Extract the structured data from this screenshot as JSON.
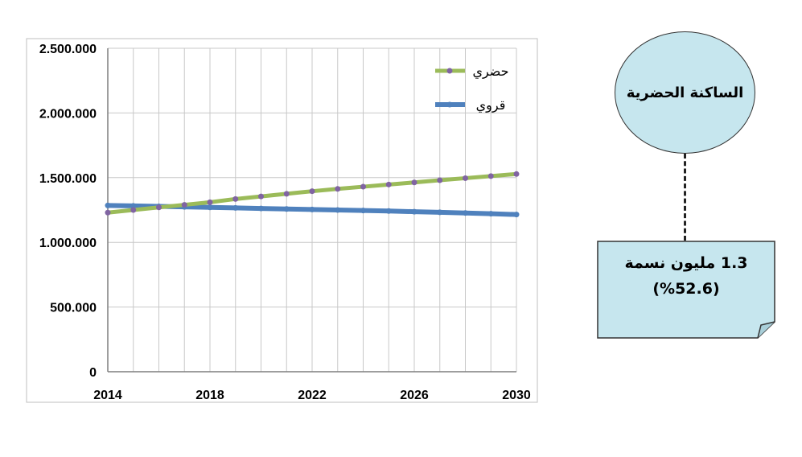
{
  "chart_data": {
    "type": "line",
    "title": "",
    "xlabel": "",
    "ylabel": "",
    "x": [
      2014,
      2015,
      2016,
      2017,
      2018,
      2019,
      2020,
      2021,
      2022,
      2023,
      2024,
      2025,
      2026,
      2027,
      2028,
      2029,
      2030
    ],
    "xlim": [
      2014,
      2030
    ],
    "ylim": [
      0,
      2500000
    ],
    "xticks": [
      "2014",
      "2018",
      "2022",
      "2026",
      "2030"
    ],
    "yticks": [
      "0",
      "500.000",
      "1.000.000",
      "1.500.000",
      "2.000.000",
      "2.500.000"
    ],
    "grid": true,
    "legend_position": "top-right",
    "series": [
      {
        "name": "حضري",
        "line_color": "#9bbb59",
        "marker_color": "#8064a2",
        "values": [
          1230000,
          1250000,
          1270000,
          1290000,
          1310000,
          1335000,
          1355000,
          1375000,
          1395000,
          1413000,
          1430000,
          1447000,
          1463000,
          1480000,
          1496000,
          1512000,
          1528000
        ]
      },
      {
        "name": "قروي",
        "line_color": "#4f81bd",
        "marker_color": "#4f81bd",
        "values": [
          1285000,
          1282000,
          1278000,
          1274000,
          1270000,
          1266000,
          1262000,
          1258000,
          1254000,
          1250000,
          1246000,
          1242000,
          1237000,
          1232000,
          1227000,
          1221000,
          1215000
        ]
      }
    ]
  },
  "callout": {
    "circle_label": "الساكنة الحضرية",
    "circle_color": "#c6e6ee",
    "box_line1": "1.3 مليون نسمة",
    "box_line2": "(%52.6)"
  }
}
